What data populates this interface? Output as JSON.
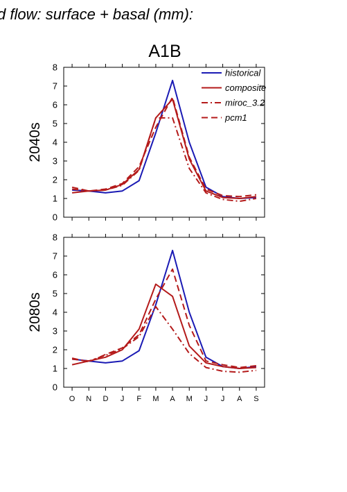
{
  "title": "d flow: surface + basal (mm):",
  "subtitle": "A1B",
  "colors": {
    "historical": "#1a1ab4",
    "scenario": "#b41a1a"
  },
  "chart_data": [
    {
      "type": "line",
      "ylabel": "2040s",
      "categories": [
        "O",
        "N",
        "D",
        "J",
        "F",
        "M",
        "A",
        "M",
        "J",
        "J",
        "A",
        "S"
      ],
      "ylim": [
        0,
        8
      ],
      "yticks": [
        0,
        1,
        2,
        3,
        4,
        5,
        6,
        7,
        8
      ],
      "legend": "top-right",
      "series": [
        {
          "name": "historical",
          "dash": "solid",
          "values": [
            1.45,
            1.4,
            1.3,
            1.4,
            1.95,
            4.5,
            7.3,
            4.0,
            1.6,
            1.1,
            1.0,
            1.05
          ]
        },
        {
          "name": "composite",
          "dash": "solid",
          "values": [
            1.3,
            1.4,
            1.45,
            1.75,
            2.55,
            5.3,
            6.3,
            3.1,
            1.4,
            1.05,
            1.0,
            1.1
          ]
        },
        {
          "name": "miroc_3.2",
          "dash": "dashdot",
          "values": [
            1.5,
            1.4,
            1.45,
            1.7,
            2.5,
            5.3,
            5.3,
            2.6,
            1.3,
            0.95,
            0.85,
            1.0
          ]
        },
        {
          "name": "pcm1",
          "dash": "dash",
          "values": [
            1.6,
            1.4,
            1.5,
            1.8,
            2.7,
            4.8,
            6.4,
            3.2,
            1.5,
            1.15,
            1.1,
            1.2
          ]
        }
      ]
    },
    {
      "type": "line",
      "ylabel": "2080s",
      "categories": [
        "O",
        "N",
        "D",
        "J",
        "F",
        "M",
        "A",
        "M",
        "J",
        "J",
        "A",
        "S"
      ],
      "ylim": [
        0,
        8
      ],
      "yticks": [
        0,
        1,
        2,
        3,
        4,
        5,
        6,
        7,
        8
      ],
      "series": [
        {
          "name": "historical",
          "dash": "solid",
          "values": [
            1.5,
            1.4,
            1.3,
            1.4,
            1.95,
            4.4,
            7.3,
            4.0,
            1.6,
            1.1,
            1.0,
            1.1
          ]
        },
        {
          "name": "composite",
          "dash": "solid",
          "values": [
            1.2,
            1.4,
            1.6,
            2.0,
            3.1,
            5.5,
            4.85,
            2.2,
            1.3,
            1.1,
            1.0,
            1.05
          ]
        },
        {
          "name": "miroc_3.2",
          "dash": "dashdot",
          "values": [
            1.5,
            1.4,
            1.7,
            2.05,
            2.7,
            4.3,
            3.1,
            1.8,
            1.05,
            0.85,
            0.8,
            0.9
          ]
        },
        {
          "name": "pcm1",
          "dash": "dash",
          "values": [
            1.55,
            1.35,
            1.75,
            2.1,
            2.8,
            4.7,
            6.3,
            3.3,
            1.4,
            1.2,
            1.05,
            1.15
          ]
        }
      ]
    }
  ]
}
